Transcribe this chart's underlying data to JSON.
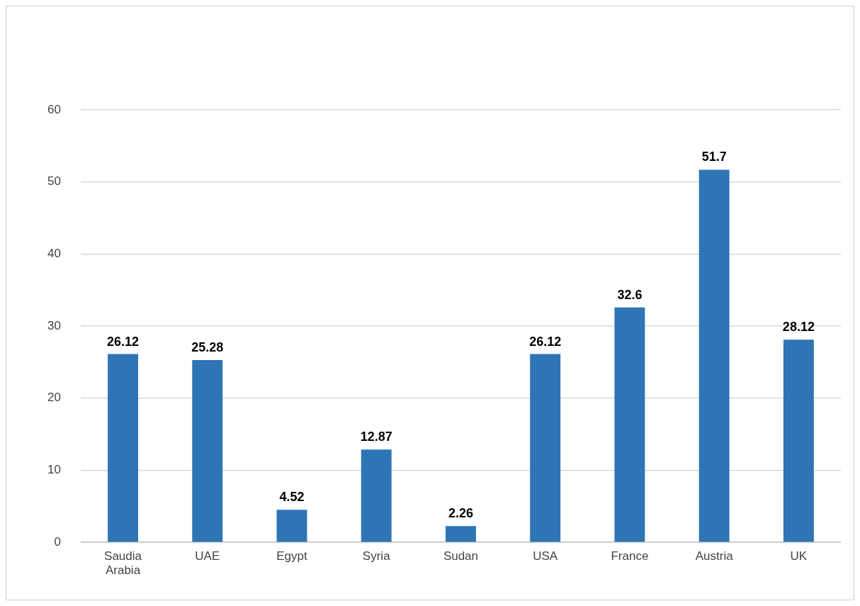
{
  "chart_data": {
    "type": "bar",
    "categories": [
      "Saudia Arabia",
      "UAE",
      "Egypt",
      "Syria",
      "Sudan",
      "USA",
      "France",
      "Austria",
      "UK"
    ],
    "values": [
      26.12,
      25.28,
      4.52,
      12.87,
      2.26,
      26.12,
      32.6,
      51.7,
      28.12
    ],
    "color": "#2e75b6",
    "ylim": [
      0,
      60
    ],
    "yticks": [
      0,
      10,
      20,
      30,
      40,
      50,
      60
    ],
    "grid": "y",
    "legend": false,
    "data_labels": true
  }
}
